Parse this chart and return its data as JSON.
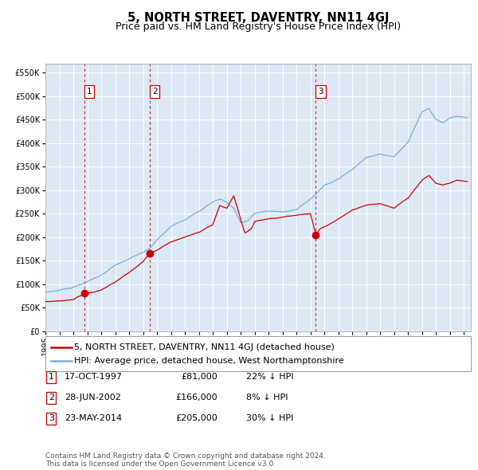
{
  "title": "5, NORTH STREET, DAVENTRY, NN11 4GJ",
  "subtitle": "Price paid vs. HM Land Registry's House Price Index (HPI)",
  "legend_property": "5, NORTH STREET, DAVENTRY, NN11 4GJ (detached house)",
  "legend_hpi": "HPI: Average price, detached house, West Northamptonshire",
  "footnote1": "Contains HM Land Registry data © Crown copyright and database right 2024.",
  "footnote2": "This data is licensed under the Open Government Licence v3.0.",
  "transactions": [
    {
      "num": 1,
      "date": "17-OCT-1997",
      "date_float": 1997.79,
      "price": 81000,
      "price_str": "£81,000",
      "hpi_diff": "22% ↓ HPI"
    },
    {
      "num": 2,
      "date": "28-JUN-2002",
      "date_float": 2002.49,
      "price": 166000,
      "price_str": "£166,000",
      "hpi_diff": "8% ↓ HPI"
    },
    {
      "num": 3,
      "date": "23-MAY-2014",
      "date_float": 2014.39,
      "price": 205000,
      "price_str": "£205,000",
      "hpi_diff": "30% ↓ HPI"
    }
  ],
  "property_color": "#cc0000",
  "hpi_color": "#7aadd4",
  "plot_bg": "#dce8f4",
  "grid_color": "#ffffff",
  "vline_color": "#cc0000",
  "ylim": [
    0,
    570000
  ],
  "yticks": [
    0,
    50000,
    100000,
    150000,
    200000,
    250000,
    300000,
    350000,
    400000,
    450000,
    500000,
    550000
  ],
  "xlim_start": 1995.0,
  "xlim_end": 2025.5,
  "title_fontsize": 10.5,
  "subtitle_fontsize": 9,
  "tick_fontsize": 7,
  "legend_fontsize": 8,
  "table_fontsize": 8,
  "footnote_fontsize": 6.5
}
